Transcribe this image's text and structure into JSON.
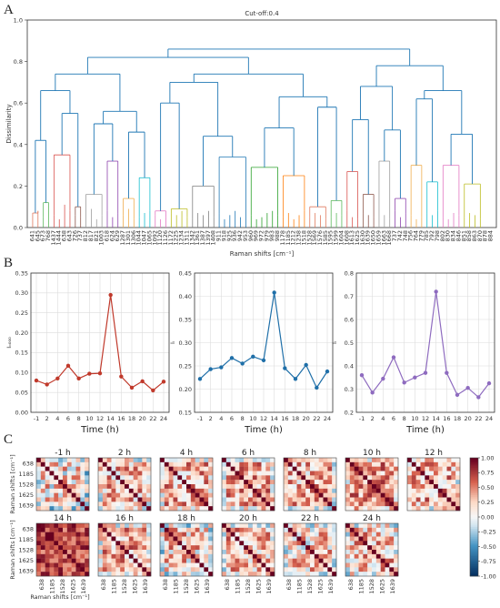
{
  "figure": {
    "panel_a_label": "A",
    "panel_b_label": "B",
    "panel_c_label": "C"
  },
  "chart_data": [
    {
      "type": "dendrogram",
      "panel": "A",
      "title": "Cut-off:0.4",
      "ylabel": "Dissimilarity",
      "xlabel": "Raman shifts [cm⁻¹]",
      "ylim": [
        0,
        1.0
      ],
      "yticks": [
        "0.0",
        "0.2",
        "0.4",
        "0.6",
        "0.8",
        "1.0"
      ],
      "leaf_labels": [
        "641",
        "645",
        "673",
        "768",
        "1437",
        "1444",
        "638",
        "643",
        "726",
        "737",
        "812",
        "817",
        "821",
        "1003",
        "618",
        "624",
        "629",
        "1287",
        "1301",
        "1306",
        "1044",
        "1047",
        "1065",
        "1092",
        "1120",
        "1126",
        "1172",
        "1225",
        "1234",
        "1311",
        "1342",
        "1361",
        "1387",
        "1397",
        "1408",
        "911",
        "918",
        "925",
        "936",
        "942",
        "953",
        "960",
        "969",
        "972",
        "979",
        "983",
        "988",
        "1178",
        "1185",
        "1212",
        "1238",
        "1518",
        "1528",
        "1569",
        "1576",
        "1585",
        "1595",
        "1599",
        "1604",
        "1608",
        "1613",
        "1625",
        "1630",
        "1639",
        "1650",
        "1659",
        "1663",
        "1668",
        "737",
        "742",
        "748",
        "756",
        "764",
        "779",
        "785",
        "792",
        "798",
        "802",
        "830",
        "834",
        "846",
        "851",
        "858",
        "863",
        "870",
        "878",
        "884"
      ],
      "leaf_heights": [
        0.05,
        0.06,
        0.03,
        0.05,
        0.04,
        0.02,
        0.09,
        0.06,
        0.04,
        0.03,
        0.05,
        0.07,
        0.02,
        0.04,
        0.06,
        0.03,
        0.05,
        0.04,
        0.07,
        0.02,
        0.03,
        0.05,
        0.06,
        0.04,
        0.02,
        0.03,
        0.05,
        0.04,
        0.06,
        0.03,
        0.02,
        0.05,
        0.04,
        0.06,
        0.03,
        0.05,
        0.02,
        0.04,
        0.06,
        0.03,
        0.05,
        0.04,
        0.02,
        0.03,
        0.05,
        0.06,
        0.04,
        0.03,
        0.05,
        0.02,
        0.04,
        0.06,
        0.03,
        0.05,
        0.04,
        0.02,
        0.03,
        0.05,
        0.04,
        0.06,
        0.03,
        0.02,
        0.05,
        0.04,
        0.03,
        0.05,
        0.04,
        0.02,
        0.06,
        0.03,
        0.05,
        0.04,
        0.02,
        0.03,
        0.05,
        0.04,
        0.06,
        0.03,
        0.02,
        0.05,
        0.04,
        0.03,
        0.05,
        0.04,
        0.02
      ],
      "cluster_colors": [
        "#e07a5f",
        "#5cb85c",
        "#d9534f",
        "#8c564b",
        "#9e9e9e",
        "#8e44ad",
        "#f0ad4e",
        "#17becf",
        "#e377c2",
        "#bcbd22",
        "#7f7f7f",
        "#1f77b4",
        "#2ca02c",
        "#ff7f0e"
      ],
      "link_color": "#1f77b4"
    },
    {
      "type": "line",
      "panel": "B-1",
      "x": [
        "-1",
        "2",
        "4",
        "6",
        "8",
        "10",
        "12",
        "14",
        "16",
        "18",
        "20",
        "22",
        "24"
      ],
      "values": [
        0.08,
        0.07,
        0.085,
        0.117,
        0.085,
        0.097,
        0.098,
        0.295,
        0.09,
        0.062,
        0.078,
        0.055,
        0.077
      ],
      "xlabel": "Time (h)",
      "ylabel": "Iₒ₀₀₀",
      "ylim": [
        0,
        0.35
      ],
      "yticks": [
        "0.00",
        "0.05",
        "0.10",
        "0.15",
        "0.20",
        "0.25",
        "0.30",
        "0.35"
      ],
      "color": "#c0392b",
      "grid": true
    },
    {
      "type": "line",
      "panel": "B-2",
      "x": [
        "-1",
        "2",
        "4",
        "6",
        "8",
        "10",
        "12",
        "14",
        "16",
        "18",
        "20",
        "22",
        "24"
      ],
      "values": [
        0.222,
        0.243,
        0.247,
        0.267,
        0.255,
        0.27,
        0.262,
        0.408,
        0.245,
        0.222,
        0.252,
        0.203,
        0.238
      ],
      "xlabel": "Time (h)",
      "ylabel": "Iᵢ",
      "ylim": [
        0.15,
        0.45
      ],
      "yticks": [
        "0.15",
        "0.20",
        "0.25",
        "0.30",
        "0.35",
        "0.40",
        "0.45"
      ],
      "color": "#1f6fa8",
      "grid": true
    },
    {
      "type": "line",
      "panel": "B-3",
      "x": [
        "-1",
        "2",
        "4",
        "6",
        "8",
        "10",
        "12",
        "14",
        "16",
        "18",
        "20",
        "22",
        "24"
      ],
      "values": [
        0.36,
        0.285,
        0.345,
        0.437,
        0.328,
        0.35,
        0.37,
        0.72,
        0.37,
        0.275,
        0.305,
        0.265,
        0.325
      ],
      "xlabel": "Time (h)",
      "ylabel": "Iᵢ",
      "ylim": [
        0.2,
        0.8
      ],
      "yticks": [
        "0.2",
        "0.3",
        "0.4",
        "0.5",
        "0.6",
        "0.7",
        "0.8"
      ],
      "color": "#8e6bbf",
      "grid": true
    },
    {
      "type": "heatmap",
      "panel": "C",
      "titles": [
        "-1 h",
        "2 h",
        "4 h",
        "6 h",
        "8 h",
        "10 h",
        "12 h",
        "14 h",
        "16 h",
        "18 h",
        "20 h",
        "22 h",
        "24 h"
      ],
      "ylabel": "Raman shifts [cm⁻¹]",
      "xlabel": "Raman shifts [cm⁻¹]",
      "ticks": [
        "638",
        "1185",
        "1528",
        "1625",
        "1639"
      ],
      "colorbar_ticks": [
        "1.00",
        "0.75",
        "0.50",
        "0.25",
        "0.00",
        "-0.25",
        "-0.50",
        "-0.75",
        "-1.00"
      ],
      "colorbar_range": [
        -1.0,
        1.0
      ],
      "mean_correlation": [
        0.15,
        0.3,
        0.32,
        0.38,
        0.3,
        0.42,
        0.34,
        0.72,
        0.36,
        0.22,
        0.3,
        0.2,
        0.28
      ]
    }
  ]
}
